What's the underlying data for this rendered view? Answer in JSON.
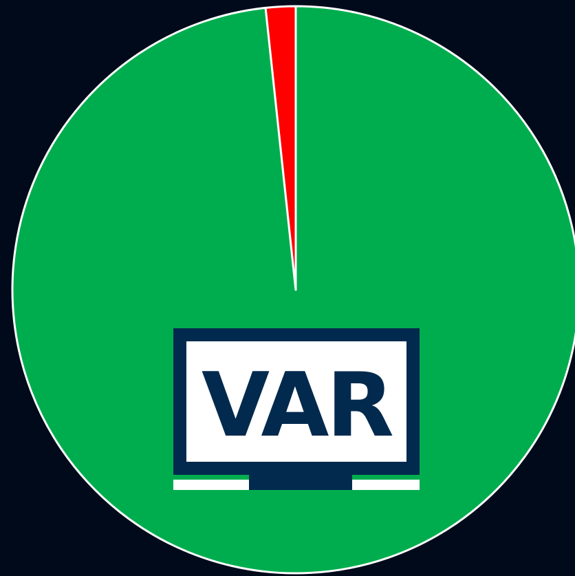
{
  "chart_data": {
    "type": "pie",
    "categories": [
      null,
      null
    ],
    "values": [
      98.3,
      1.7
    ],
    "colors": [
      "#00ad4e",
      "#ff0000"
    ],
    "start_angle": 0,
    "direction": "clockwise",
    "logo_text": "VAR"
  }
}
